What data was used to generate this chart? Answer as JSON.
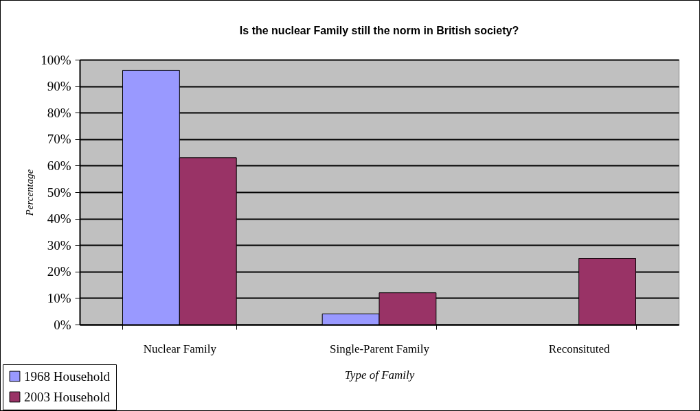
{
  "chart_data": {
    "type": "bar",
    "title": "Is the nuclear Family still the norm in British society?",
    "xlabel": "Type of Family",
    "ylabel": "Percentage",
    "categories": [
      "Nuclear Family",
      "Single-Parent Family",
      "Reconsituted"
    ],
    "series": [
      {
        "name": "1968 Household",
        "color": "#9999ff",
        "values": [
          96,
          4,
          null
        ]
      },
      {
        "name": "2003 Household",
        "color": "#993366",
        "values": [
          63,
          12,
          25
        ]
      }
    ],
    "ylim": [
      0,
      100
    ],
    "yticks": [
      {
        "value": 0,
        "label": "0%"
      },
      {
        "value": 10,
        "label": "10%"
      },
      {
        "value": 20,
        "label": "20%"
      },
      {
        "value": 30,
        "label": "30%"
      },
      {
        "value": 40,
        "label": "40%"
      },
      {
        "value": 50,
        "label": "50%"
      },
      {
        "value": 60,
        "label": "60%"
      },
      {
        "value": 70,
        "label": "70%"
      },
      {
        "value": 80,
        "label": "80%"
      },
      {
        "value": 90,
        "label": "90%"
      },
      {
        "value": 100,
        "label": "100%"
      }
    ],
    "grid": "y",
    "legend": "bottom left"
  }
}
